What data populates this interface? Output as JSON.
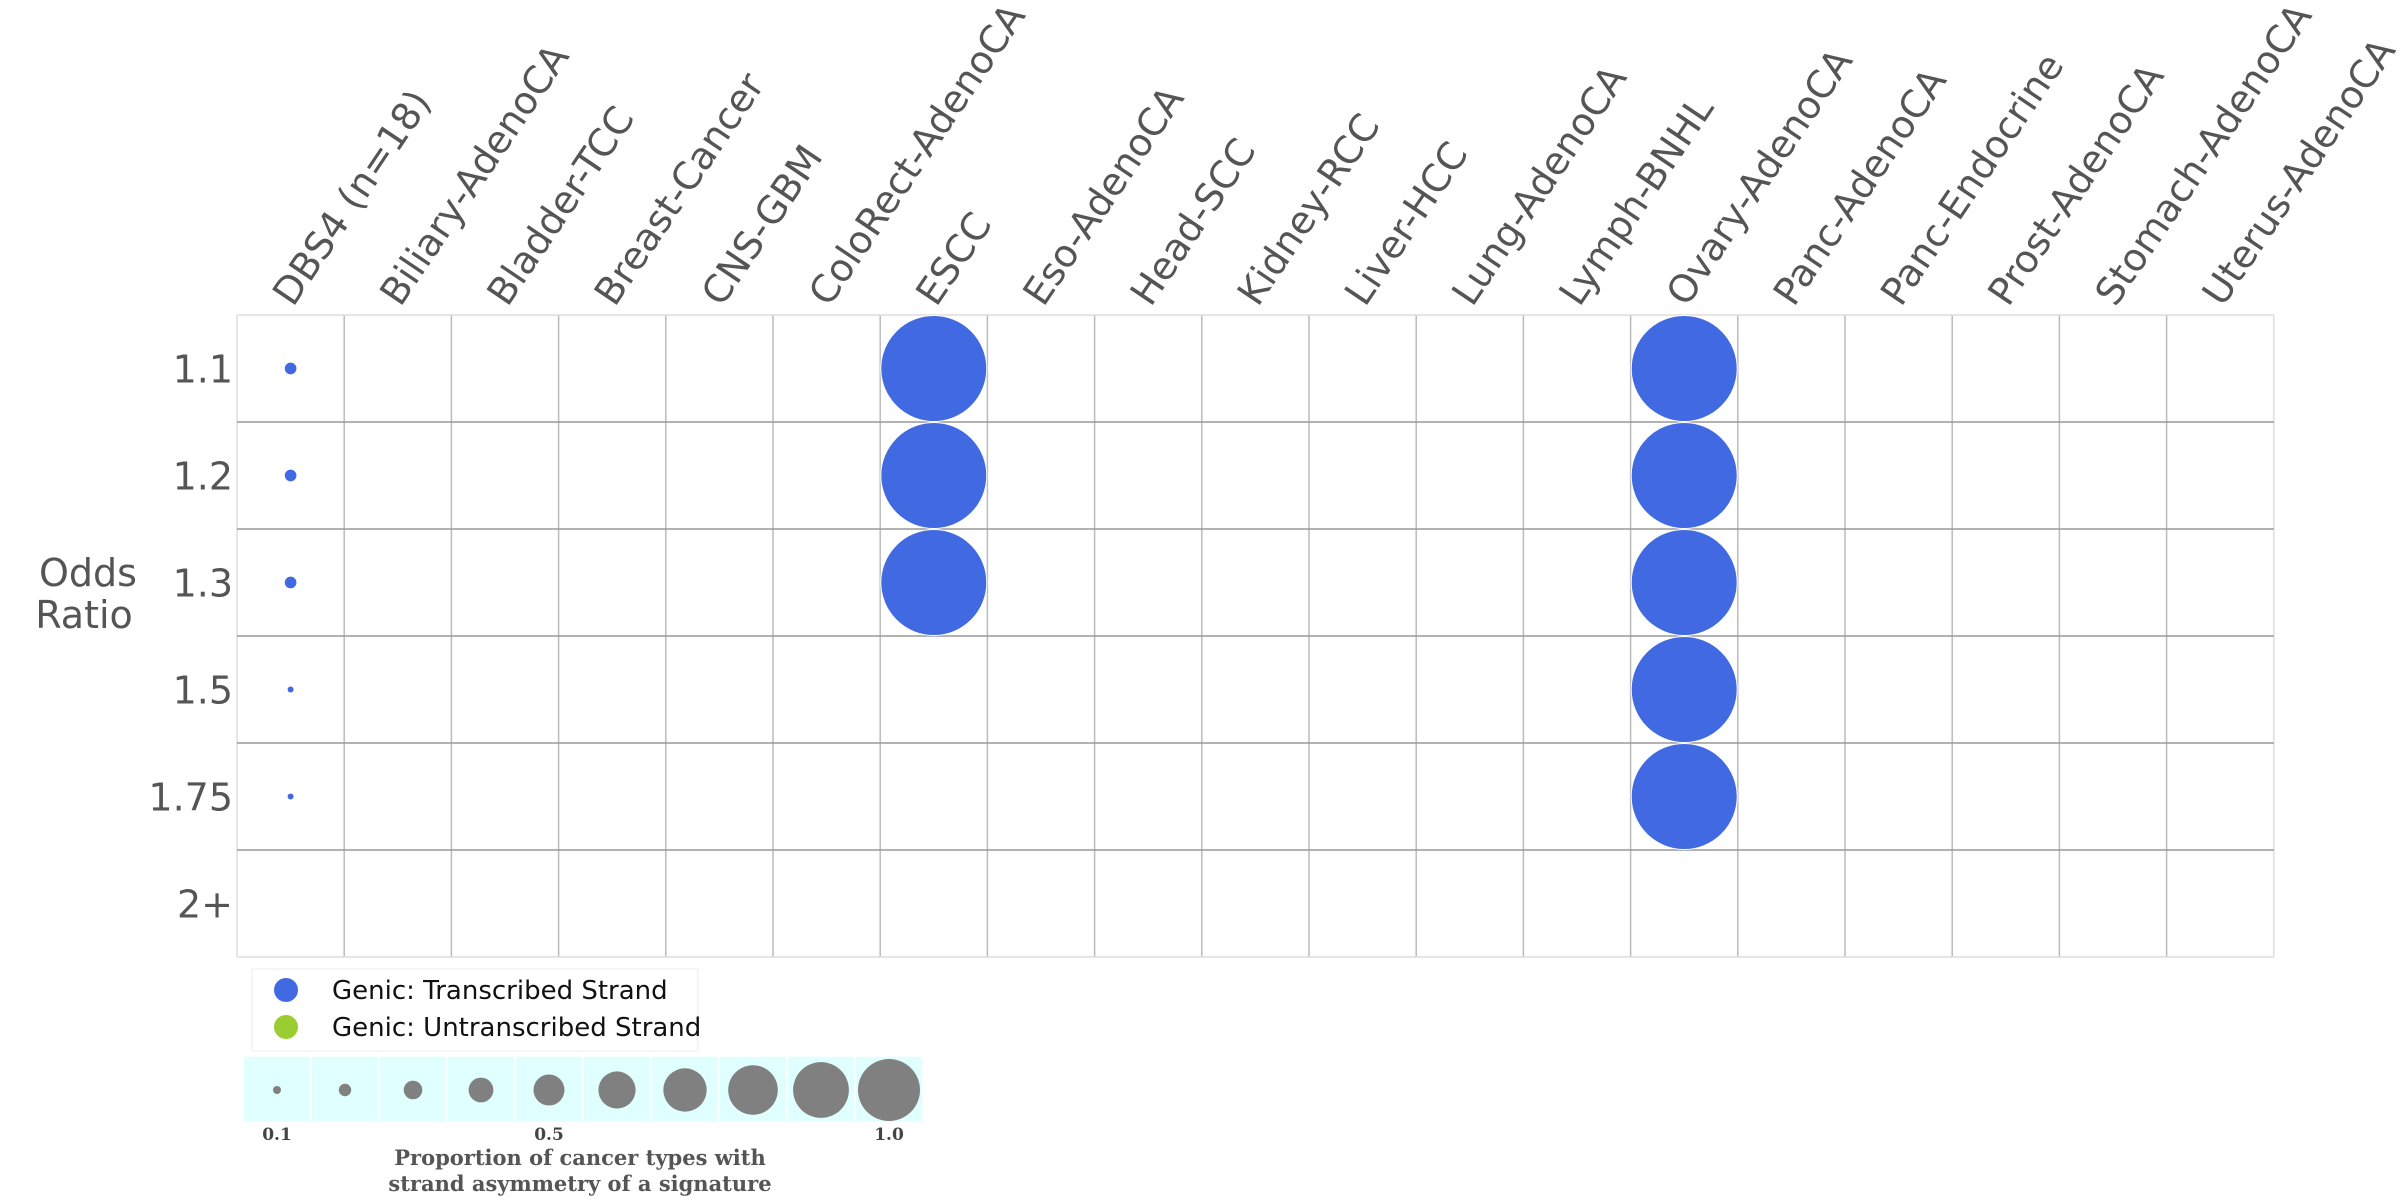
{
  "chart_data": {
    "type": "bubble-grid",
    "columns": [
      "DBS4 (n=18)",
      "Biliary-AdenoCA",
      "Bladder-TCC",
      "Breast-Cancer",
      "CNS-GBM",
      "ColoRect-AdenoCA",
      "ESCC",
      "Eso-AdenoCA",
      "Head-SCC",
      "Kidney-RCC",
      "Liver-HCC",
      "Lung-AdenoCA",
      "Lymph-BNHL",
      "Ovary-AdenoCA",
      "Panc-AdenoCA",
      "Panc-Endocrine",
      "Prost-AdenoCA",
      "Stomach-AdenoCA",
      "Uterus-AdenoCA"
    ],
    "rows": [
      "1.1",
      "1.2",
      "1.3",
      "1.5",
      "1.75",
      "2+"
    ],
    "ylabel_line1": "Odds",
    "ylabel_line2": "Ratio",
    "points": [
      {
        "column": "DBS4 (n=18)",
        "row": "1.1",
        "value": 0.11,
        "strand": "Genic: Transcribed Strand"
      },
      {
        "column": "DBS4 (n=18)",
        "row": "1.2",
        "value": 0.11,
        "strand": "Genic: Transcribed Strand"
      },
      {
        "column": "DBS4 (n=18)",
        "row": "1.3",
        "value": 0.11,
        "strand": "Genic: Transcribed Strand"
      },
      {
        "column": "DBS4 (n=18)",
        "row": "1.5",
        "value": 0.056,
        "strand": "Genic: Transcribed Strand"
      },
      {
        "column": "DBS4 (n=18)",
        "row": "1.75",
        "value": 0.056,
        "strand": "Genic: Transcribed Strand"
      },
      {
        "column": "ESCC",
        "row": "1.1",
        "value": 1.0,
        "strand": "Genic: Transcribed Strand"
      },
      {
        "column": "ESCC",
        "row": "1.2",
        "value": 1.0,
        "strand": "Genic: Transcribed Strand"
      },
      {
        "column": "ESCC",
        "row": "1.3",
        "value": 1.0,
        "strand": "Genic: Transcribed Strand"
      },
      {
        "column": "Ovary-AdenoCA",
        "row": "1.1",
        "value": 1.0,
        "strand": "Genic: Transcribed Strand"
      },
      {
        "column": "Ovary-AdenoCA",
        "row": "1.2",
        "value": 1.0,
        "strand": "Genic: Transcribed Strand"
      },
      {
        "column": "Ovary-AdenoCA",
        "row": "1.3",
        "value": 1.0,
        "strand": "Genic: Transcribed Strand"
      },
      {
        "column": "Ovary-AdenoCA",
        "row": "1.5",
        "value": 1.0,
        "strand": "Genic: Transcribed Strand"
      },
      {
        "column": "Ovary-AdenoCA",
        "row": "1.75",
        "value": 1.0,
        "strand": "Genic: Transcribed Strand"
      }
    ],
    "legend": [
      {
        "label": "Genic: Transcribed Strand",
        "color": "#4169e1"
      },
      {
        "label": "Genic: Untranscribed Strand",
        "color": "#9acd32"
      }
    ],
    "size_scale": {
      "values": [
        0.1,
        0.2,
        0.3,
        0.4,
        0.5,
        0.6,
        0.7,
        0.8,
        0.9,
        1.0
      ],
      "tick_labels": [
        "0.1",
        "0.5",
        "1.0"
      ],
      "caption_line1": "Proportion of cancer types with",
      "caption_line2": "strand asymmetry of a signature",
      "color": "#808080",
      "background": "#e0ffff"
    },
    "grid": true
  }
}
